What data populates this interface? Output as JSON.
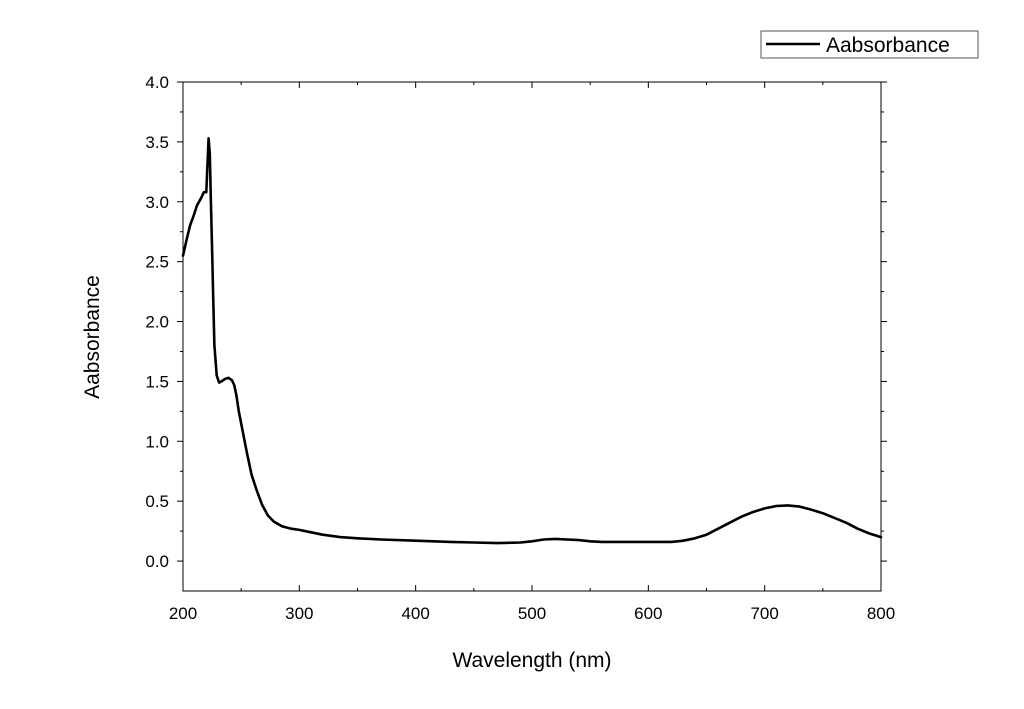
{
  "chart_data": {
    "type": "line",
    "title": "",
    "xlabel": "Wavelength (nm)",
    "ylabel": "Aabsorbance",
    "xlim": [
      200,
      800
    ],
    "ylim": [
      -0.25,
      4.0
    ],
    "x_ticks": [
      200,
      300,
      400,
      500,
      600,
      700,
      800
    ],
    "x_tick_labels": [
      "200",
      "300",
      "400",
      "500",
      "600",
      "700",
      "800"
    ],
    "y_ticks": [
      0.0,
      0.5,
      1.0,
      1.5,
      2.0,
      2.5,
      3.0,
      3.5,
      4.0
    ],
    "y_tick_labels": [
      "0.0",
      "0.5",
      "1.0",
      "1.5",
      "2.0",
      "2.5",
      "3.0",
      "3.5",
      "4.0"
    ],
    "grid": false,
    "legend_position": "top-right, outside plot",
    "series": [
      {
        "name": "Aabsorbance",
        "color": "#000000",
        "x": [
          200,
          203,
          206,
          209,
          212,
          215,
          218,
          220,
          221,
          222,
          223,
          224,
          225,
          226,
          227,
          229,
          231,
          233,
          236,
          239,
          242,
          244,
          246,
          248,
          251,
          255,
          259,
          263,
          268,
          273,
          278,
          285,
          293,
          300,
          310,
          320,
          335,
          350,
          370,
          400,
          430,
          450,
          470,
          490,
          500,
          510,
          520,
          530,
          540,
          550,
          560,
          580,
          600,
          620,
          630,
          640,
          650,
          660,
          670,
          680,
          690,
          700,
          710,
          720,
          730,
          740,
          750,
          760,
          770,
          780,
          790,
          800
        ],
        "y": [
          2.55,
          2.68,
          2.8,
          2.88,
          2.97,
          3.02,
          3.08,
          3.08,
          3.3,
          3.53,
          3.4,
          3.0,
          2.6,
          2.2,
          1.8,
          1.55,
          1.49,
          1.5,
          1.52,
          1.53,
          1.51,
          1.47,
          1.38,
          1.25,
          1.1,
          0.9,
          0.72,
          0.6,
          0.47,
          0.38,
          0.33,
          0.29,
          0.27,
          0.26,
          0.24,
          0.22,
          0.2,
          0.19,
          0.18,
          0.17,
          0.16,
          0.155,
          0.15,
          0.155,
          0.165,
          0.18,
          0.185,
          0.18,
          0.175,
          0.165,
          0.16,
          0.16,
          0.16,
          0.16,
          0.17,
          0.19,
          0.22,
          0.27,
          0.32,
          0.37,
          0.41,
          0.44,
          0.46,
          0.465,
          0.455,
          0.43,
          0.4,
          0.36,
          0.32,
          0.27,
          0.23,
          0.2
        ]
      }
    ]
  }
}
